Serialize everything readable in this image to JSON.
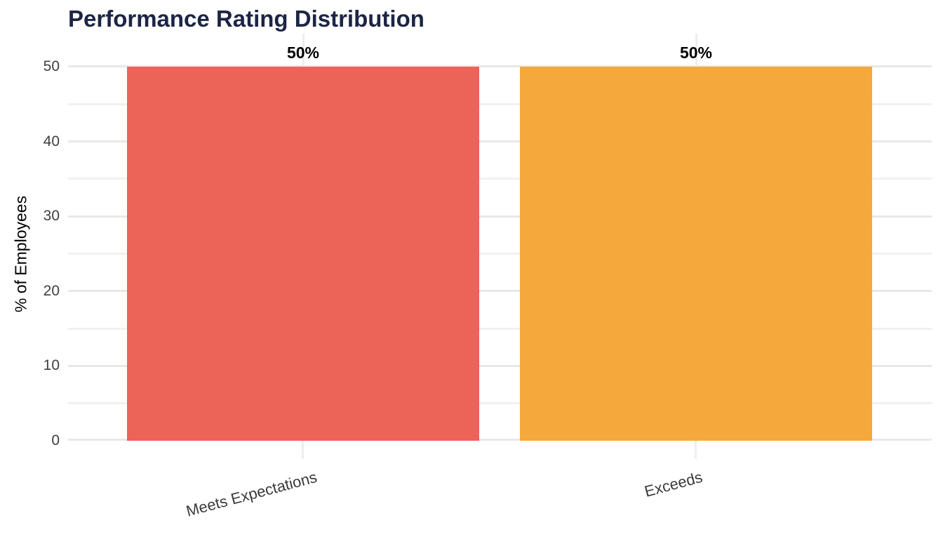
{
  "chart_data": {
    "type": "bar",
    "title": "Performance Rating Distribution",
    "xlabel": "",
    "ylabel": "% of Employees",
    "categories": [
      "Meets Expectations",
      "Exceeds"
    ],
    "values": [
      50,
      50
    ],
    "bar_labels": [
      "50%",
      "50%"
    ],
    "bar_colors": [
      "#EB6457",
      "#F5A83C"
    ],
    "ylim": [
      0,
      50
    ],
    "yticks": [
      0,
      10,
      20,
      30,
      40,
      50
    ],
    "ytick_labels": [
      "0",
      "10",
      "20",
      "30",
      "40",
      "50"
    ],
    "grid": "on",
    "legend_position": "none",
    "orientation": "vertical"
  },
  "colors": {
    "background": "#FFFFFF",
    "title_text": "#1D2545",
    "axis_tick_text": "#3F3F3F",
    "axis_title_text": "#000000",
    "bar_value_text": "#000000",
    "grid_major": "#E8E8E8",
    "grid_minor": "#F1F1F1"
  }
}
